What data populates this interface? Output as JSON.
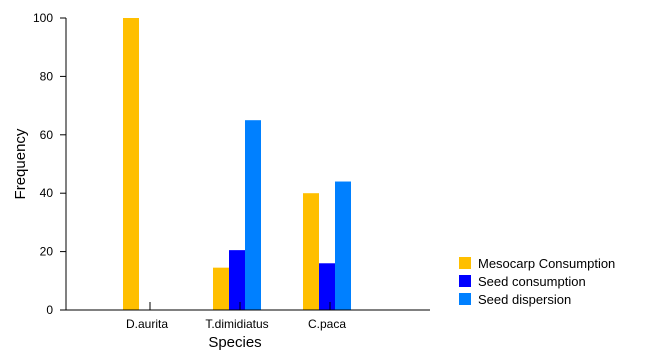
{
  "chart_data": {
    "type": "bar",
    "title": "",
    "xlabel": "Species",
    "ylabel": "Frequency",
    "categories": [
      "D.aurita",
      "T.dimidiatus",
      "C.paca"
    ],
    "series": [
      {
        "name": "Mesocarp Consumption",
        "color": "#FFBF00",
        "values": [
          100,
          14.5,
          40
        ]
      },
      {
        "name": "Seed consumption",
        "color": "#0000FF",
        "values": [
          0,
          20.5,
          16
        ]
      },
      {
        "name": "Seed dispersion",
        "color": "#0080FF",
        "values": [
          0,
          65,
          44
        ]
      }
    ],
    "ylim": [
      0,
      100
    ],
    "yticks": [
      0,
      20,
      40,
      60,
      80,
      100
    ],
    "grid": false,
    "legend_position": "right"
  }
}
